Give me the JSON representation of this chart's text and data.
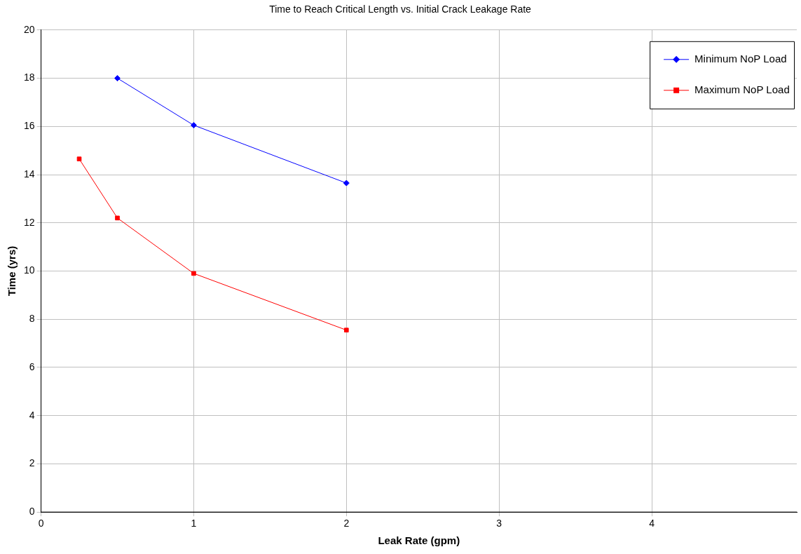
{
  "chart_data": {
    "type": "line",
    "title": "Time to Reach Critical Length vs. Initial Crack Leakage Rate",
    "xlabel": "Leak Rate (gpm)",
    "ylabel": "Time (yrs)",
    "xlim": [
      0,
      4.95
    ],
    "xticks": [
      0,
      1,
      2,
      3,
      4
    ],
    "ylim": [
      0,
      20
    ],
    "yticks": [
      0,
      2,
      4,
      6,
      8,
      10,
      12,
      14,
      16,
      18,
      20
    ],
    "grid": true,
    "legend": "top right",
    "line_style": "solid",
    "series": [
      {
        "name": "Minimum NoP Load",
        "color": "#0000ff",
        "marker": "diamond",
        "x": [
          0.5,
          1,
          2
        ],
        "values": [
          18.0,
          16.05,
          13.65
        ]
      },
      {
        "name": "Maximum NoP Load",
        "color": "#ff0000",
        "marker": "square",
        "x": [
          0.25,
          0.5,
          1,
          2
        ],
        "values": [
          14.65,
          12.2,
          9.9,
          7.55
        ]
      }
    ]
  }
}
